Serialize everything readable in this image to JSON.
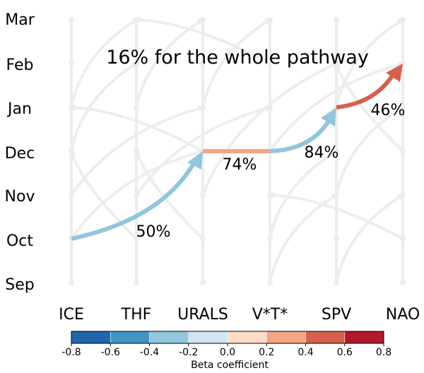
{
  "title": "16% for the whole pathway",
  "months": [
    "Mar",
    "Feb",
    "Jan",
    "Dec",
    "Nov",
    "Oct",
    "Sep"
  ],
  "variables": [
    "ICE",
    "THF",
    "URALS",
    "V*T*",
    "SPV",
    "NAO"
  ],
  "pathway": [
    {
      "from": "ICE Oct",
      "to": "URALS Dec",
      "percent_label": "50%",
      "beta": -0.3
    },
    {
      "from": "URALS Dec",
      "to": "V*T* Dec",
      "percent_label": "74%",
      "beta": 0.3
    },
    {
      "from": "V*T* Dec",
      "to": "SPV Jan",
      "percent_label": "84%",
      "beta": -0.3
    },
    {
      "from": "SPV Jan",
      "to": "NAO Feb",
      "percent_label": "46%",
      "beta": 0.5
    }
  ],
  "colorbar": {
    "label": "Beta coefficient",
    "ticks": [
      "-0.8",
      "-0.6",
      "-0.4",
      "-0.2",
      "0.0",
      "0.2",
      "0.4",
      "0.6",
      "0.8"
    ],
    "colors": [
      "#2166ac",
      "#4393c3",
      "#92c5de",
      "#d1e5f0",
      "#fddbc7",
      "#f4a582",
      "#d6604d",
      "#b2182b"
    ]
  },
  "background_color": "#ededed"
}
